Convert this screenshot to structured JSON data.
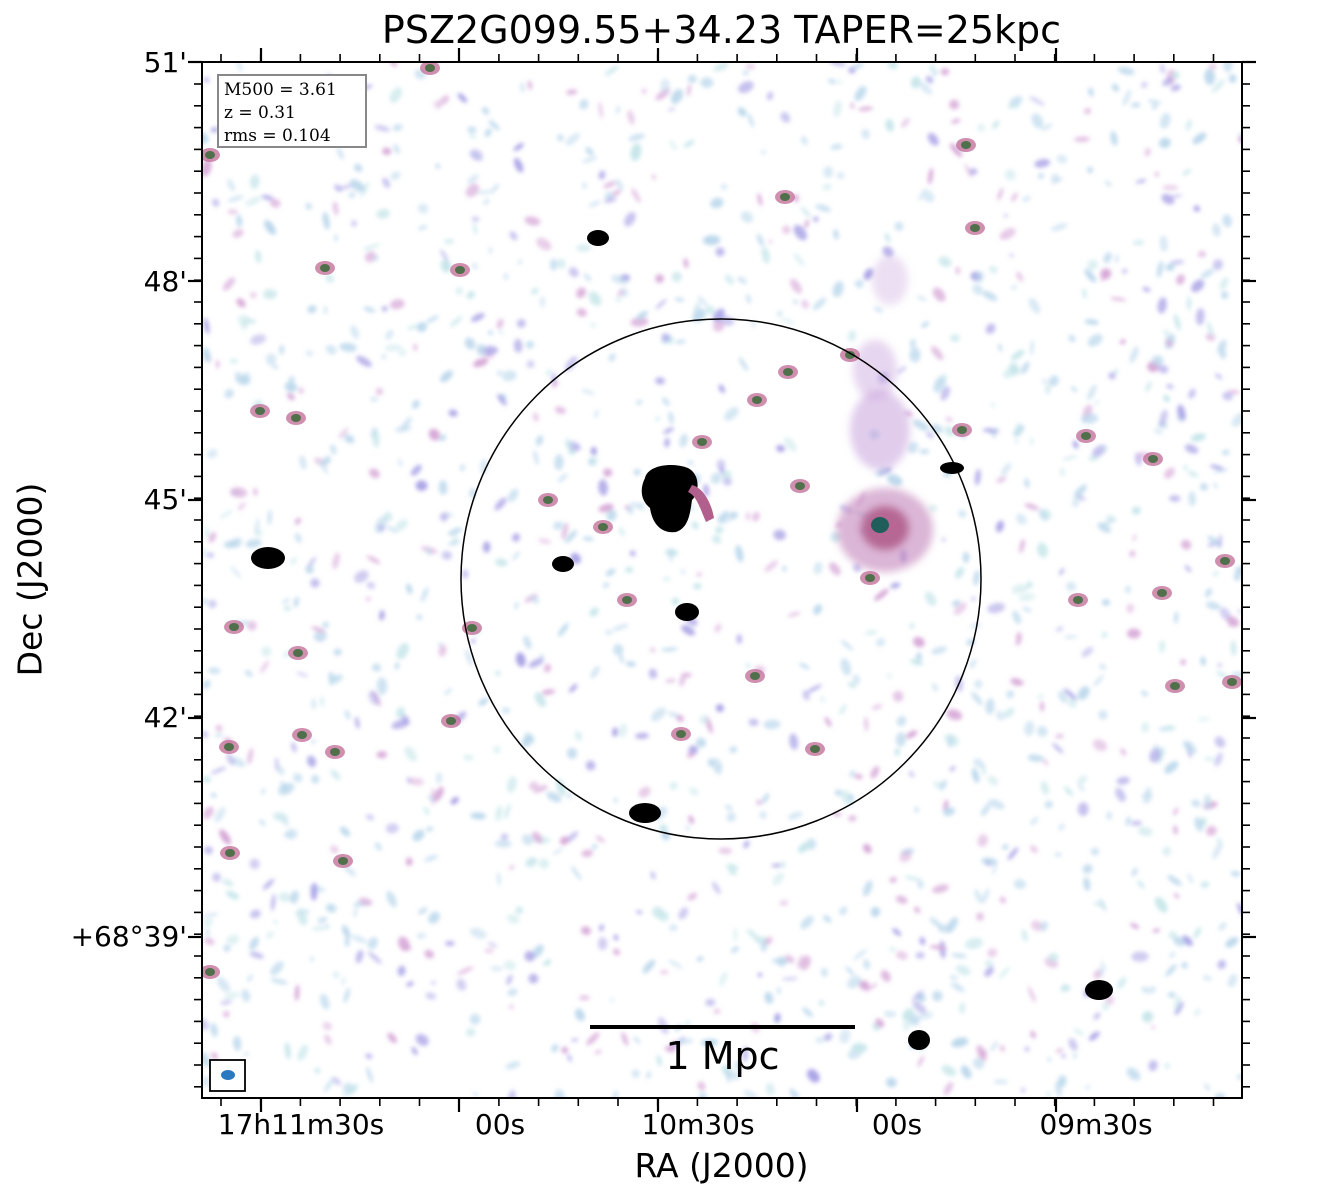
{
  "title": "PSZ2G099.55+34.23 TAPER=25kpc",
  "axes": {
    "xlabel": "RA (J2000)",
    "ylabel": "Dec (J2000)",
    "xticks": [
      "17h11m30s",
      "00s",
      "10m30s",
      "00s",
      "09m30s"
    ],
    "yticks": [
      "51'",
      "48'",
      "45'",
      "42'",
      "+68°39'"
    ]
  },
  "info": {
    "m500": "M500 = 3.61",
    "z": "z = 0.31",
    "rms": "rms = 0.104"
  },
  "scale_bar": {
    "label": "1 Mpc"
  },
  "colors": {
    "noise_light": "#bcd8ec",
    "noise_mid": "#a9a3e6",
    "source_pink": "#c06a94",
    "source_core": "#3a6b3a",
    "bright": "#000000",
    "beam": "#2a78c0"
  }
}
